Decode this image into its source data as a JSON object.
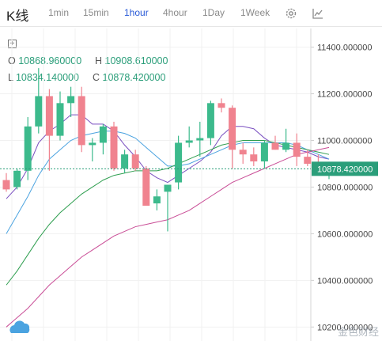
{
  "header": {
    "title": "K线",
    "timeframes": [
      "1min",
      "15min",
      "1hour",
      "4hour",
      "1Day",
      "1Week"
    ],
    "active_timeframe": "1hour",
    "icons": [
      "gear-icon",
      "indicator-icon"
    ]
  },
  "ohlc": {
    "o_label": "O",
    "o_value": "10868.960000",
    "h_label": "H",
    "h_value": "10908.610000",
    "l_label": "L",
    "l_value": "10834.140000",
    "c_label": "C",
    "c_value": "10878.420000"
  },
  "watermark": "金色财经",
  "chart_data": {
    "type": "candlestick",
    "ylim": [
      10140,
      11480
    ],
    "y_ticks": [
      11400,
      11200,
      11000,
      10800,
      10600,
      10400,
      10200
    ],
    "y_tick_labels": [
      "11400.000000",
      "11200.000000",
      "11000.000000",
      "10800.000000",
      "10600.000000",
      "10400.000000",
      "10200.000000"
    ],
    "current_price": 10878.42,
    "current_price_label": "10878.420000",
    "colors": {
      "up": "#3cba8c",
      "down": "#f0838f",
      "ma1": "#7a4fc0",
      "ma2": "#4ba3e0",
      "ma3": "#2e9e4f",
      "ma4": "#c94d96",
      "price_line": "#2b9e7a"
    },
    "candles": [
      {
        "o": 10830,
        "h": 10860,
        "l": 10780,
        "c": 10790
      },
      {
        "o": 10800,
        "h": 10880,
        "l": 10790,
        "c": 10870
      },
      {
        "o": 10870,
        "h": 11100,
        "l": 10830,
        "c": 11060
      },
      {
        "o": 11060,
        "h": 11310,
        "l": 11030,
        "c": 11190
      },
      {
        "o": 11190,
        "h": 11220,
        "l": 10870,
        "c": 11020
      },
      {
        "o": 11020,
        "h": 11210,
        "l": 11000,
        "c": 11160
      },
      {
        "o": 11160,
        "h": 11230,
        "l": 11100,
        "c": 11190
      },
      {
        "o": 11190,
        "h": 11230,
        "l": 10950,
        "c": 10980
      },
      {
        "o": 10980,
        "h": 11010,
        "l": 10910,
        "c": 10990
      },
      {
        "o": 10990,
        "h": 11070,
        "l": 10940,
        "c": 11060
      },
      {
        "o": 11060,
        "h": 11080,
        "l": 10870,
        "c": 10880
      },
      {
        "o": 10880,
        "h": 10960,
        "l": 10860,
        "c": 10940
      },
      {
        "o": 10940,
        "h": 10960,
        "l": 10870,
        "c": 10880
      },
      {
        "o": 10880,
        "h": 10890,
        "l": 10730,
        "c": 10720
      },
      {
        "o": 10730,
        "h": 10790,
        "l": 10700,
        "c": 10760
      },
      {
        "o": 10780,
        "h": 10810,
        "l": 10610,
        "c": 10810
      },
      {
        "o": 10820,
        "h": 11020,
        "l": 10790,
        "c": 10990
      },
      {
        "o": 10990,
        "h": 11060,
        "l": 10970,
        "c": 11000
      },
      {
        "o": 11000,
        "h": 11080,
        "l": 10930,
        "c": 11010
      },
      {
        "o": 11010,
        "h": 11170,
        "l": 10980,
        "c": 11160
      },
      {
        "o": 11160,
        "h": 11180,
        "l": 11120,
        "c": 11140
      },
      {
        "o": 11140,
        "h": 11150,
        "l": 10880,
        "c": 10960
      },
      {
        "o": 10960,
        "h": 10990,
        "l": 10900,
        "c": 10940
      },
      {
        "o": 10940,
        "h": 10970,
        "l": 10890,
        "c": 10910
      },
      {
        "o": 10910,
        "h": 11000,
        "l": 10880,
        "c": 10990
      },
      {
        "o": 10990,
        "h": 11020,
        "l": 10960,
        "c": 10960
      },
      {
        "o": 10960,
        "h": 11050,
        "l": 10950,
        "c": 10990
      },
      {
        "o": 10990,
        "h": 11030,
        "l": 10890,
        "c": 10930
      },
      {
        "o": 10930,
        "h": 10960,
        "l": 10890,
        "c": 10900
      },
      {
        "o": 10900,
        "h": 10940,
        "l": 10860,
        "c": 10870
      },
      {
        "o": 10868.96,
        "h": 10908.61,
        "l": 10834.14,
        "c": 10878.42
      }
    ],
    "moving_averages": [
      {
        "values": [
          10750,
          10800,
          10880,
          10990,
          11040,
          11070,
          11110,
          11110,
          11070,
          11070,
          11040,
          10980,
          10930,
          10870,
          10840,
          10820,
          10850,
          10880,
          10910,
          10950,
          11020,
          11060,
          11060,
          11050,
          11010,
          10980,
          10970,
          10960,
          10950,
          10930,
          10920
        ]
      },
      {
        "values": [
          10600,
          10680,
          10760,
          10850,
          10920,
          10960,
          11000,
          11020,
          11030,
          11040,
          11040,
          11030,
          11010,
          10970,
          10930,
          10890,
          10890,
          10900,
          10920,
          10940,
          10960,
          10980,
          10990,
          10990,
          10990,
          10990,
          10990,
          10980,
          10960,
          10940,
          10920
        ]
      },
      {
        "values": [
          10380,
          10440,
          10510,
          10580,
          10640,
          10690,
          10730,
          10770,
          10800,
          10830,
          10850,
          10860,
          10870,
          10870,
          10870,
          10880,
          10900,
          10920,
          10940,
          10960,
          10980,
          10990,
          11000,
          11000,
          11000,
          10990,
          10980,
          10970,
          10960,
          10950,
          10940
        ]
      },
      {
        "values": [
          10200,
          10240,
          10280,
          10330,
          10380,
          10420,
          10460,
          10500,
          10530,
          10560,
          10590,
          10610,
          10630,
          10640,
          10650,
          10660,
          10680,
          10700,
          10730,
          10760,
          10790,
          10820,
          10840,
          10860,
          10880,
          10900,
          10920,
          10940,
          10950,
          10960,
          10970
        ]
      }
    ]
  }
}
